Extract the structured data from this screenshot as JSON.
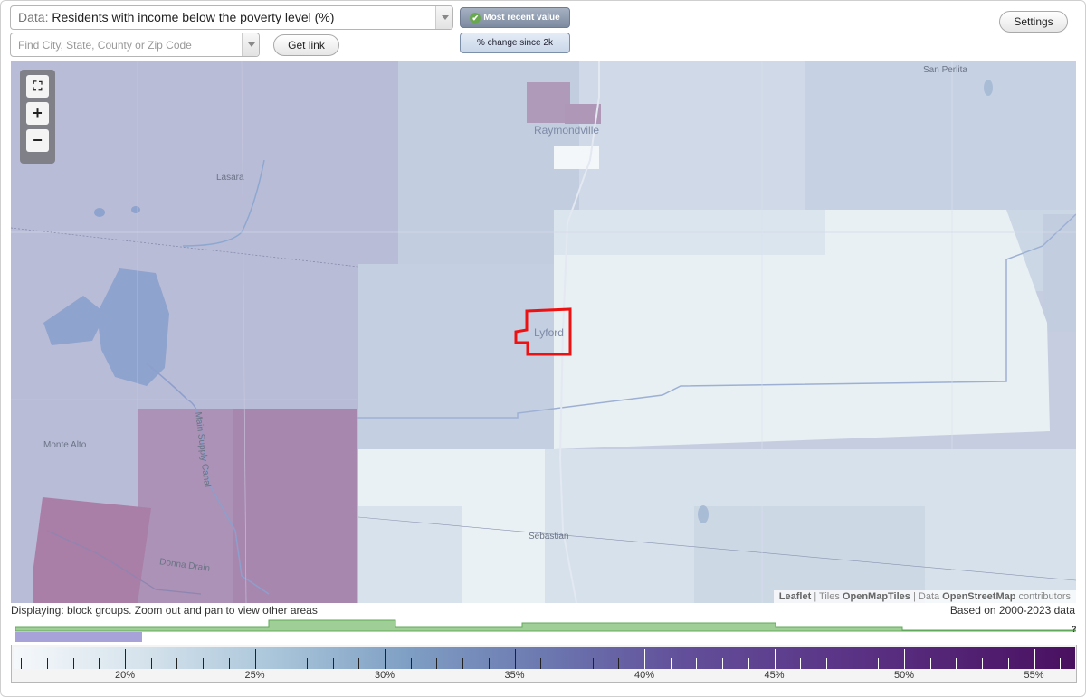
{
  "toolbar": {
    "data_label": "Data:",
    "data_value": "Residents with income below the poverty level (%)",
    "search_placeholder": "Find City, State, County or Zip Code",
    "get_link": "Get link",
    "most_recent": "Most recent value",
    "pct_change": "% change since 2k",
    "settings": "Settings"
  },
  "map": {
    "places": {
      "san_perlita": "San Perlita",
      "raymondville": "Raymondville",
      "lasara": "Lasara",
      "lyford": "Lyford",
      "monte_alto": "Monte Alto",
      "sebastian": "Sebastian",
      "canal": "Main Supply Canal",
      "drain": "Donna Drain"
    },
    "attribution": {
      "leaflet": "Leaflet",
      "sep1": " | Tiles ",
      "tiles": "OpenMapTiles",
      "sep2": " | Data ",
      "data": "OpenStreetMap",
      "contributors": " contributors"
    },
    "zoom": {
      "fit": "⛶",
      "in": "+",
      "out": "−"
    }
  },
  "footer": {
    "displaying": "Displaying: block groups. Zoom out and pan to view other areas",
    "based_on": "Based on 2000-2023 data",
    "help": "?"
  },
  "legend": {
    "labels": [
      "20%",
      "25%",
      "30%",
      "35%",
      "40%",
      "45%",
      "50%",
      "55%"
    ]
  }
}
